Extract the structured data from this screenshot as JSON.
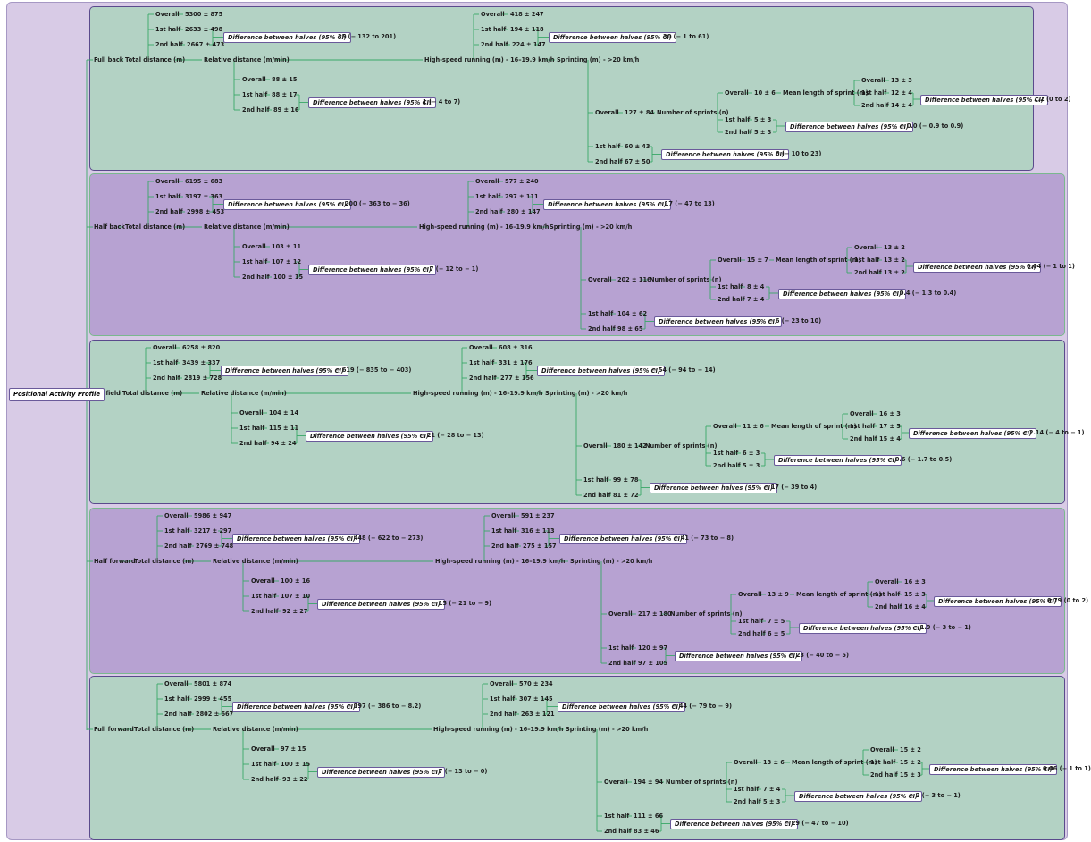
{
  "root": "Positional Activity Profile",
  "labels": {
    "total": "Total distance (m)",
    "relative": "Relative distance (m/min)",
    "hsr": "High-speed running (m) - 16–19.9 km/h",
    "sprinting": "Sprinting (m) - >20 km/h",
    "num_sprints": "Number of sprints (n)",
    "mean_length": "Mean length of sprint (m)",
    "overall": "Overall",
    "first": "1st half",
    "second": "2nd half",
    "diff": "Difference between halves (95% CI)"
  },
  "colors": {
    "green_panel": "#b3d2c4",
    "purple_panel": "#b7a2d2",
    "outer": "#d8cbe6",
    "connector": "#3aa868"
  },
  "positions": [
    {
      "name": "Full back",
      "total": {
        "overall": "5300 ± 875",
        "first": "2633 ± 498",
        "second": "2667 ± 473",
        "diff": "35 (− 132 to 201)"
      },
      "relative": {
        "overall": "88 ± 15",
        "first": "88 ± 17",
        "second": "89 ± 16",
        "diff": "1 (− 4 to 7)"
      },
      "hsr": {
        "overall": "418 ± 247",
        "first": "194 ± 118",
        "second": "224 ± 147",
        "diff": "30 (− 1 to 61)"
      },
      "sprint": {
        "overall": "127 ± 84",
        "first": "60 ± 43",
        "second": "67 ± 50",
        "diff": "6 (− 10 to 23)"
      },
      "num": {
        "overall": "10 ± 6",
        "first": "5 ± 3",
        "second": "5 ± 3",
        "diff": "− 0.0 (− 0.9 to 0.9)"
      },
      "mean": {
        "overall": "13 ± 3",
        "first": "12 ± 4",
        "second": "14 ± 4",
        "diff": "1.2 (0 to 2)"
      }
    },
    {
      "name": "Half back",
      "total": {
        "overall": "6195 ± 683",
        "first": "3197 ± 363",
        "second": "2998 ± 453",
        "diff": "− 200 (− 363 to − 36)"
      },
      "relative": {
        "overall": "103 ± 11",
        "first": "107 ± 12",
        "second": "100 ± 15",
        "diff": "− 7 (− 12 to − 1)"
      },
      "hsr": {
        "overall": "577 ± 240",
        "first": "297 ± 111",
        "second": "280 ± 147",
        "diff": "− 17 (− 47 to 13)"
      },
      "sprint": {
        "overall": "202 ± 116",
        "first": "104 ± 62",
        "second": "98 ± 65",
        "diff": "− 6 (− 23 to 10)"
      },
      "num": {
        "overall": "15 ± 7",
        "first": "8 ± 4",
        "second": "7 ± 4",
        "diff": "− 0.4 (− 1.3 to 0.4)"
      },
      "mean": {
        "overall": "13 ± 2",
        "first": "13 ± 2",
        "second": "13 ± 2",
        "diff": "0.04 (− 1 to 1)"
      }
    },
    {
      "name": "Midfield",
      "total": {
        "overall": "6258 ± 820",
        "first": "3439 ± 337",
        "second": "2819 ± 728",
        "diff": "− 619 (− 835 to − 403)"
      },
      "relative": {
        "overall": "104 ± 14",
        "first": "115 ± 11",
        "second": "94 ± 24",
        "diff": "− 21 (− 28 to − 13)"
      },
      "hsr": {
        "overall": "608 ± 316",
        "first": "331 ± 176",
        "second": "277 ± 156",
        "diff": "− 54 (− 94 to − 14)"
      },
      "sprint": {
        "overall": "180 ± 142",
        "first": "99 ± 78",
        "second": "81 ± 72",
        "diff": "− 17 (− 39 to 4)"
      },
      "num": {
        "overall": "11 ± 6",
        "first": "6 ± 3",
        "second": "5 ± 3",
        "diff": "− 0.6 (− 1.7 to 0.5)"
      },
      "mean": {
        "overall": "16 ± 3",
        "first": "17 ± 5",
        "second": "15 ± 4",
        "diff": "− 2.14 (− 4 to − 1)"
      }
    },
    {
      "name": "Half forward",
      "total": {
        "overall": "5986 ± 947",
        "first": "3217 ± 297",
        "second": "2769 ± 748",
        "diff": "− 448 (− 622 to − 273)"
      },
      "relative": {
        "overall": "100 ± 16",
        "first": "107 ± 10",
        "second": "92 ± 27",
        "diff": "− 15 (− 21 to − 9)"
      },
      "hsr": {
        "overall": "591 ± 237",
        "first": "316 ± 113",
        "second": "275 ± 157",
        "diff": "− 41 (− 73 to − 8)"
      },
      "sprint": {
        "overall": "217 ± 180",
        "first": "120 ± 97",
        "second": "97 ± 105",
        "diff": "− 23 (− 40 to − 5)"
      },
      "num": {
        "overall": "13 ± 9",
        "first": "7 ± 5",
        "second": "6 ± 5",
        "diff": "− 1.9 (− 3 to − 1)"
      },
      "mean": {
        "overall": "16 ± 3",
        "first": "15 ± 3",
        "second": "16 ± 4",
        "diff": "0.79 (0 to 2)"
      }
    },
    {
      "name": "Full forward",
      "total": {
        "overall": "5801 ± 874",
        "first": "2999 ± 455",
        "second": "2802 ± 667",
        "diff": "− 197 (− 386 to − 8.2)"
      },
      "relative": {
        "overall": "97 ± 15",
        "first": "100 ± 15",
        "second": "93 ± 22",
        "diff": "− 7 (− 13 to − 0)"
      },
      "hsr": {
        "overall": "570 ± 234",
        "first": "307 ± 145",
        "second": "263 ± 121",
        "diff": "− 44 (− 79 to − 9)"
      },
      "sprint": {
        "overall": "194 ± 94",
        "first": "111 ± 66",
        "second": "83 ± 46",
        "diff": "− 29 (− 47 to − 10)"
      },
      "num": {
        "overall": "13 ± 6",
        "first": "7 ± 4",
        "second": "5 ± 3",
        "diff": "− 2 (− 3 to − 1)"
      },
      "mean": {
        "overall": "15 ± 2",
        "first": "15 ± 2",
        "second": "15 ± 3",
        "diff": "0.06 (− 1 to 1)"
      }
    }
  ]
}
